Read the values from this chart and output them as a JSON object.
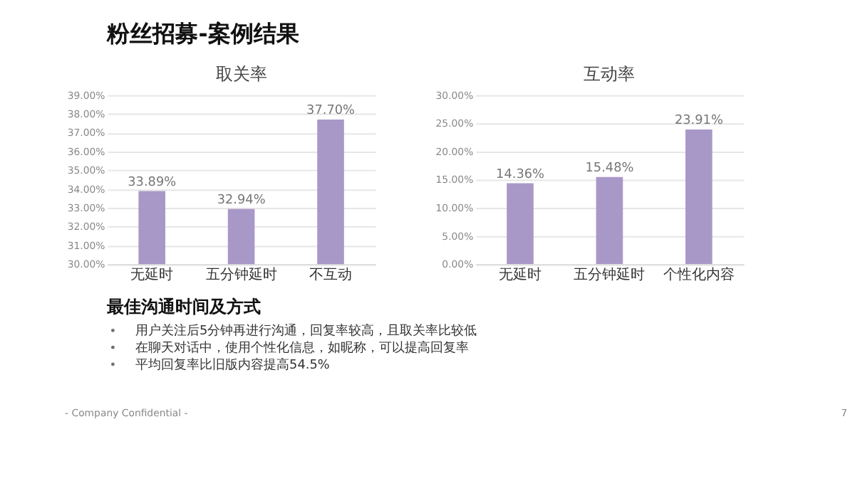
{
  "chart_data": [
    {
      "type": "bar",
      "title": "取关率",
      "categories": [
        "无延时",
        "五分钟延时",
        "不互动"
      ],
      "values": [
        33.89,
        32.94,
        37.7
      ],
      "value_labels": [
        "33.89%",
        "32.94%",
        "37.70%"
      ],
      "color": "#a898c8",
      "ylim": [
        30,
        39
      ],
      "yticks": [
        {
          "value": 30,
          "label": "30.00%"
        },
        {
          "value": 31,
          "label": "31.00%"
        },
        {
          "value": 32,
          "label": "32.00%"
        },
        {
          "value": 33,
          "label": "33.00%"
        },
        {
          "value": 34,
          "label": "34.00%"
        },
        {
          "value": 35,
          "label": "35.00%"
        },
        {
          "value": 36,
          "label": "36.00%"
        },
        {
          "value": 37,
          "label": "37.00%"
        },
        {
          "value": 38,
          "label": "38.00%"
        },
        {
          "value": 39,
          "label": "39.00%"
        }
      ],
      "grid": "y",
      "annotations": [
        "粉丝招募-案例结果"
      ]
    },
    {
      "type": "bar",
      "title": "互动率",
      "categories": [
        "无延时",
        "五分钟延时",
        "个性化内容"
      ],
      "values": [
        14.36,
        15.48,
        23.91
      ],
      "value_labels": [
        "14.36%",
        "15.48%",
        "23.91%"
      ],
      "color": "#a898c8",
      "ylim": [
        0,
        30
      ],
      "yticks": [
        {
          "value": 0,
          "label": "0.00%"
        },
        {
          "value": 5,
          "label": "5.00%"
        },
        {
          "value": 10,
          "label": "10.00%"
        },
        {
          "value": 15,
          "label": "15.00%"
        },
        {
          "value": 20,
          "label": "20.00%"
        },
        {
          "value": 25,
          "label": "25.00%"
        },
        {
          "value": 30,
          "label": "30.00%"
        }
      ],
      "grid": "y",
      "annotations": [
        "最佳沟通时间及方式",
        "用户关注后5分钟再进行沟通，回复率较高，且取关率比较低",
        "在聊天对话中，使用个性化信息，如昵称，可以提高回复率",
        "平均回复率比旧版内容提高54.5%",
        "- Company Confidential -",
        "7"
      ]
    }
  ]
}
